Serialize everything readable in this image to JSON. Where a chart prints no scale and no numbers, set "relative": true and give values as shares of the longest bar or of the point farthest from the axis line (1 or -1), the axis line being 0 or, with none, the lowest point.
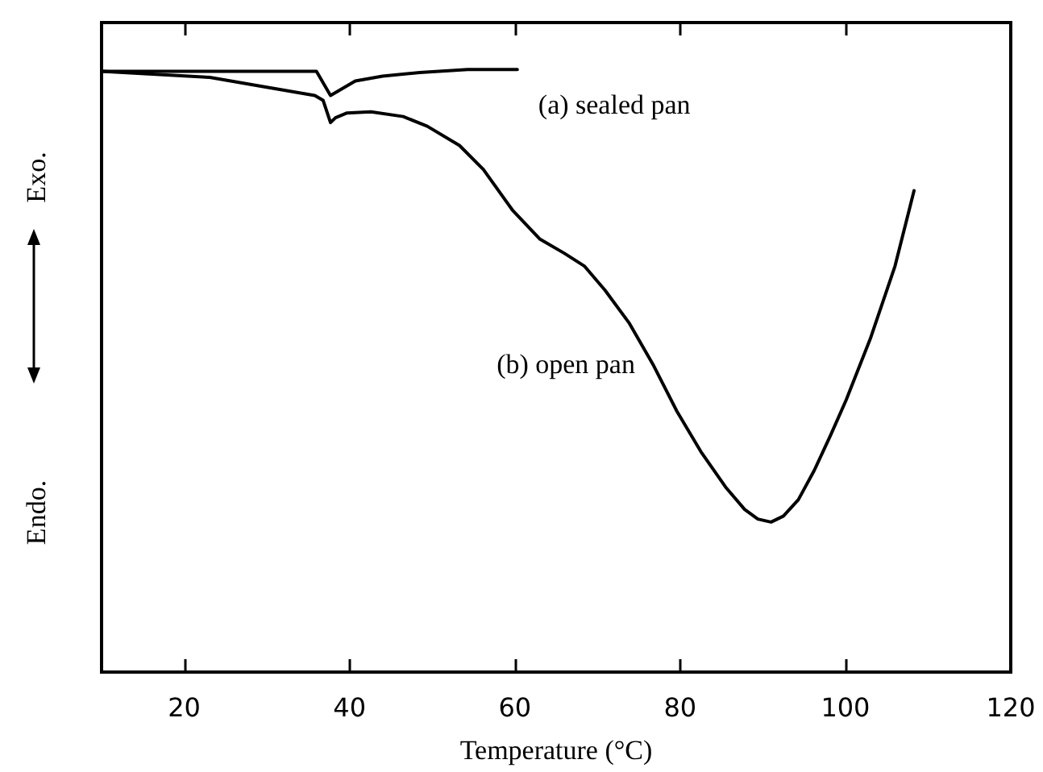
{
  "chart_data": {
    "type": "line",
    "relative": true,
    "xlabel": "Temperature (°C)",
    "xlim": [
      10,
      120
    ],
    "xticks": [
      20,
      40,
      60,
      80,
      100,
      120
    ],
    "grid": false,
    "marker": "none",
    "line_style": "solid",
    "annotations": [
      "Exo.",
      "Endo."
    ],
    "series": [
      {
        "name": "(a) sealed pan",
        "color": "#000000",
        "x": [
          10,
          20,
          30,
          36,
          37.7,
          40.7,
          44,
          48.5,
          54.3,
          60.3
        ],
        "values": [
          0.997,
          0.997,
          0.997,
          0.997,
          0.957,
          0.981,
          0.989,
          0.995,
          1.0,
          1.0
        ]
      },
      {
        "name": "(b) open pan",
        "color": "#000000",
        "x": [
          10,
          23.1,
          29,
          35.8,
          36.8,
          37.7,
          38.3,
          39.7,
          42.6,
          46.5,
          49.4,
          53.3,
          56.2,
          59.7,
          63,
          66,
          68.4,
          70.9,
          73.8,
          76.7,
          79.6,
          82.5,
          85.5,
          87.8,
          89.4,
          91,
          92.5,
          94.3,
          96.2,
          98.2,
          100.1,
          103,
          106,
          108.3
        ],
        "values": [
          0.997,
          0.987,
          0.973,
          0.957,
          0.949,
          0.912,
          0.92,
          0.928,
          0.93,
          0.922,
          0.906,
          0.874,
          0.834,
          0.767,
          0.719,
          0.695,
          0.674,
          0.634,
          0.58,
          0.511,
          0.433,
          0.366,
          0.307,
          0.27,
          0.254,
          0.249,
          0.259,
          0.286,
          0.334,
          0.393,
          0.452,
          0.553,
          0.674,
          0.799
        ]
      }
    ]
  }
}
